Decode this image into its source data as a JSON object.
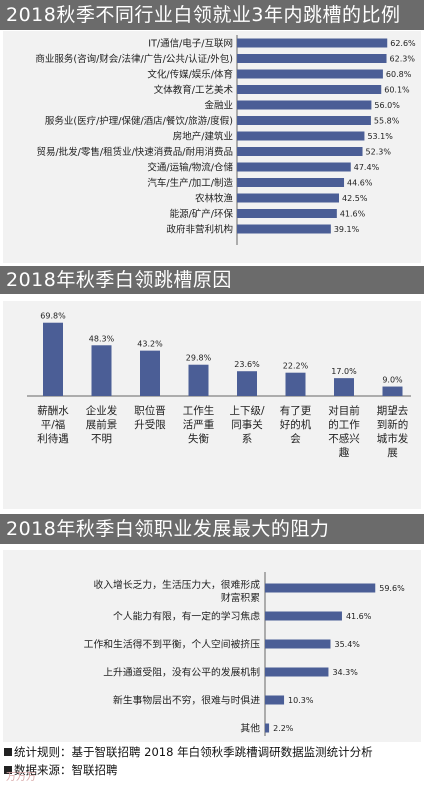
{
  "chart_data": [
    {
      "type": "bar",
      "orientation": "horizontal",
      "title": "2018秋季不同行业白领就业3年内跳槽的比例",
      "categories": [
        "IT/通信/电子/互联网",
        "商业服务(咨询/财会/法律/广告/公共/认证/外包)",
        "文化/传媒/娱乐/体育",
        "文体教育/工艺美术",
        "金融业",
        "服务业(医疗/护理/保健/酒店/餐饮/旅游/度假)",
        "房地产/建筑业",
        "贸易/批发/零售/租赁业/快速消费品/耐用消费品",
        "交通/运输/物流/仓储",
        "汽车/生产/加工/制造",
        "农林牧渔",
        "能源/矿产/环保",
        "政府非营利机构"
      ],
      "values": [
        62.6,
        62.3,
        60.8,
        60.1,
        56.0,
        55.8,
        53.1,
        52.3,
        47.4,
        44.6,
        42.5,
        41.6,
        39.1
      ],
      "value_labels": [
        "62.6%",
        "62.3%",
        "60.8%",
        "60.1%",
        "56.0%",
        "55.8%",
        "53.1%",
        "52.3%",
        "47.4%",
        "44.6%",
        "42.5%",
        "41.6%",
        "39.1%"
      ]
    },
    {
      "type": "bar",
      "orientation": "vertical",
      "title": "2018年秋季白领跳槽原因",
      "categories": [
        "薪酬水平/福利待遇",
        "企业发展前景不明",
        "职位晋升受限",
        "工作生活严重失衡",
        "上下级/同事关系",
        "有了更好的机会",
        "对目前的工作不感兴趣",
        "期望去到新的城市发展"
      ],
      "category_lines": [
        [
          "薪酬水",
          "平/福",
          "利待遇"
        ],
        [
          "企业发",
          "展前景",
          "不明"
        ],
        [
          "职位晋",
          "升受限"
        ],
        [
          "工作生",
          "活严重",
          "失衡"
        ],
        [
          "上下级/",
          "同事关",
          "系"
        ],
        [
          "有了更",
          "好的机",
          "会"
        ],
        [
          "对目前",
          "的工作",
          "不感兴",
          "趣"
        ],
        [
          "期望去",
          "到新的",
          "城市发",
          "展"
        ]
      ],
      "values": [
        69.8,
        48.3,
        43.2,
        29.8,
        23.6,
        22.2,
        17.0,
        9.0
      ],
      "value_labels": [
        "69.8%",
        "48.3%",
        "43.2%",
        "29.8%",
        "23.6%",
        "22.2%",
        "17.0%",
        "9.0%"
      ]
    },
    {
      "type": "bar",
      "orientation": "horizontal",
      "title": "2018年秋季白领职业发展最大的阻力",
      "categories": [
        "收入增长乏力，生活压力大，很难形成财富积累",
        "个人能力有限，有一定的学习焦虑",
        "工作和生活得不到平衡，个人空间被挤压",
        "上升通道受阻，没有公平的发展机制",
        "新生事物层出不穷，很难与时俱进",
        "其他"
      ],
      "category_lines": [
        [
          "收入增长乏力，生活压力大，很难形成",
          "财富积累"
        ],
        [
          "个人能力有限，有一定的学习焦虑"
        ],
        [
          "工作和生活得不到平衡，个人空间被挤压"
        ],
        [
          "上升通道受阻，没有公平的发展机制"
        ],
        [
          "新生事物层出不穷，很难与时俱进"
        ],
        [
          "其他"
        ]
      ],
      "values": [
        59.6,
        41.6,
        35.4,
        34.3,
        10.3,
        2.2
      ],
      "value_labels": [
        "59.6%",
        "41.6%",
        "35.4%",
        "34.3%",
        "10.3%",
        "2.2%"
      ]
    }
  ],
  "notes": {
    "rule": "统计规则：基于智联招聘 2018 年白领秋季跳槽调研数据监测统计分析",
    "source": "数据来源：智联招聘"
  },
  "stamp": "万万万",
  "colors": {
    "bar": "#4b5e96",
    "header": "#6b6b6b",
    "panel": "#f2f2f2"
  }
}
